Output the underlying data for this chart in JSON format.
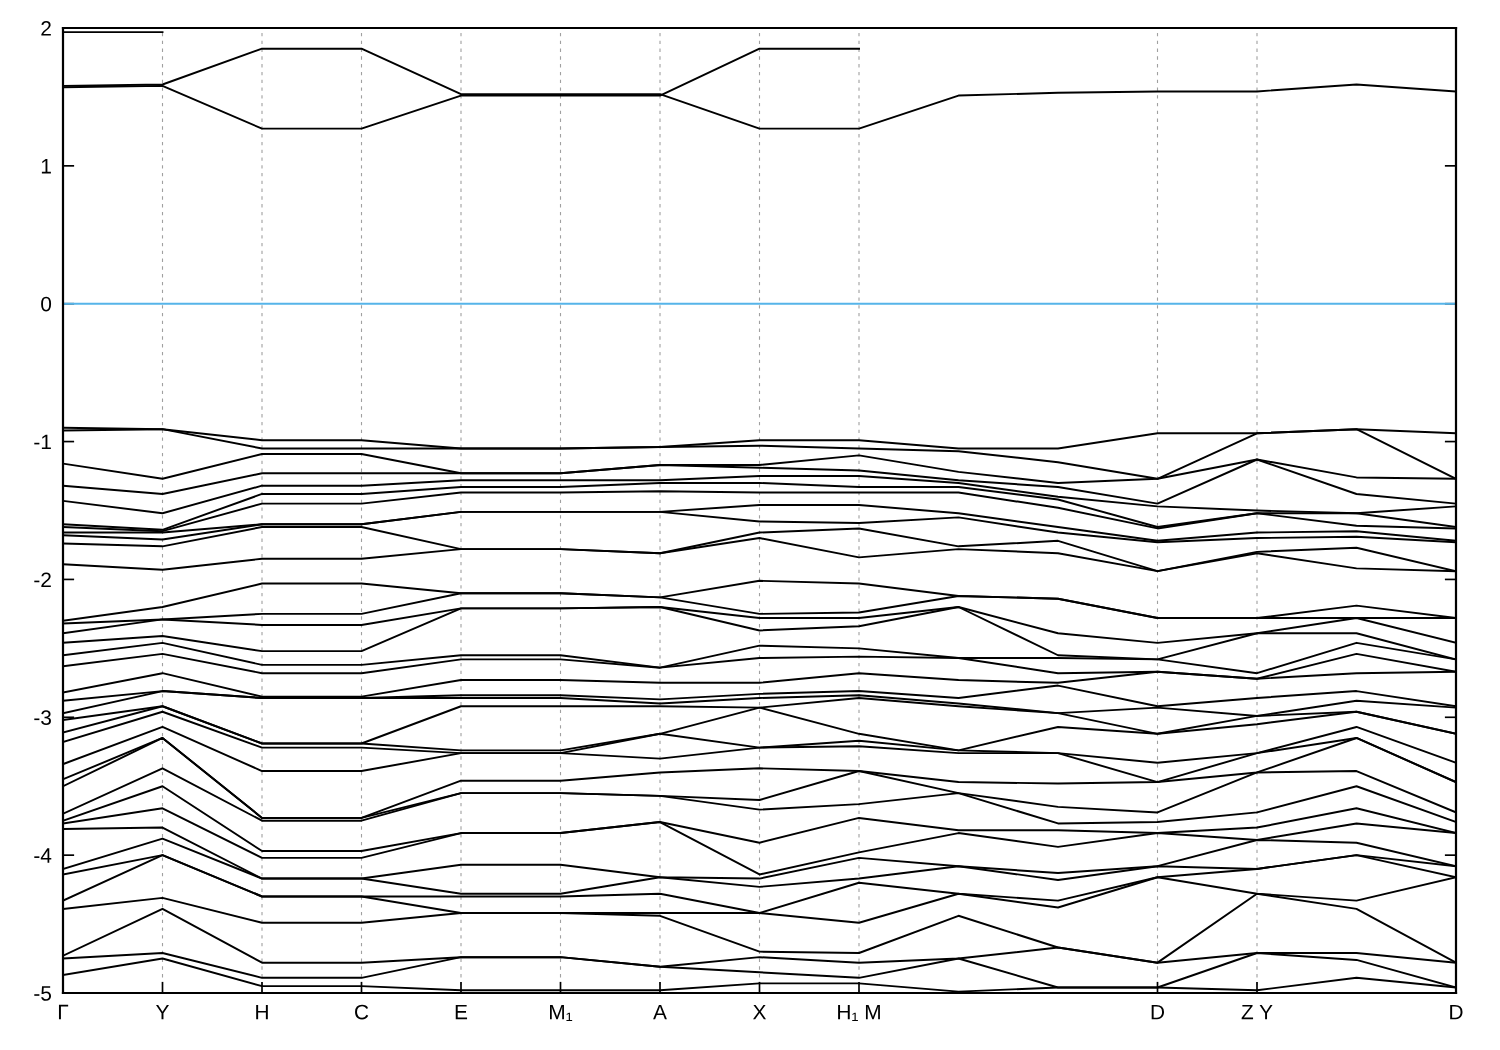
{
  "chart_data": {
    "type": "line",
    "categories": [
      "Γ",
      "Y",
      "H",
      "C",
      "E",
      "M₁",
      "A",
      "X",
      "H₁ M",
      null,
      null,
      "D",
      "Z Y",
      null,
      "D"
    ],
    "ylim": [
      -5,
      2
    ],
    "yticks": [
      -5,
      -4,
      -3,
      -2,
      -1,
      0,
      1,
      2
    ],
    "grid": "x",
    "ref_lines": [
      {
        "axis": "y",
        "value": 0,
        "color": "#56b4e9"
      }
    ],
    "series": [
      {
        "color": "#000000",
        "values": [
          1.97,
          1.97,
          null,
          null,
          null,
          null,
          null,
          null,
          null,
          null,
          null,
          null,
          null,
          null,
          null
        ]
      },
      {
        "color": "#000000",
        "values": [
          1.58,
          1.59,
          1.85,
          1.85,
          1.52,
          1.52,
          1.52,
          1.27,
          1.27,
          1.51,
          1.53,
          1.54,
          1.54,
          1.59,
          1.54
        ]
      },
      {
        "color": "#000000",
        "values": [
          1.57,
          1.58,
          1.27,
          1.27,
          1.51,
          1.51,
          1.51,
          1.85,
          1.85,
          null,
          null,
          null,
          null,
          null,
          null
        ]
      },
      {
        "color": "#000000",
        "values": [
          -0.9,
          -0.91,
          -0.99,
          -0.99,
          -1.05,
          -1.05,
          -1.04,
          -0.99,
          -0.99,
          -1.05,
          -1.05,
          -0.94,
          -0.94,
          -0.91,
          -0.94
        ]
      },
      {
        "color": "#000000",
        "values": [
          -0.92,
          -0.91,
          -1.05,
          -1.05,
          -1.05,
          -1.05,
          -1.04,
          -1.03,
          -1.05,
          -1.07,
          -1.15,
          -1.27,
          -0.94,
          -0.91,
          -1.27
        ]
      },
      {
        "color": "#000000",
        "values": [
          -1.16,
          -1.27,
          -1.09,
          -1.09,
          -1.23,
          -1.23,
          -1.17,
          -1.17,
          -1.1,
          -1.22,
          -1.3,
          -1.27,
          -1.13,
          -1.26,
          -1.27
        ]
      },
      {
        "color": "#000000",
        "values": [
          -1.32,
          -1.38,
          -1.23,
          -1.23,
          -1.23,
          -1.23,
          -1.17,
          -1.19,
          -1.21,
          -1.28,
          -1.33,
          -1.45,
          -1.13,
          -1.38,
          -1.45
        ]
      },
      {
        "color": "#000000",
        "values": [
          -1.43,
          -1.52,
          -1.32,
          -1.32,
          -1.28,
          -1.28,
          -1.28,
          -1.25,
          -1.25,
          -1.3,
          -1.4,
          -1.47,
          -1.5,
          -1.52,
          -1.47
        ]
      },
      {
        "color": "#000000",
        "values": [
          -1.6,
          -1.64,
          -1.38,
          -1.38,
          -1.33,
          -1.33,
          -1.3,
          -1.3,
          -1.33,
          -1.33,
          -1.42,
          -1.62,
          -1.52,
          -1.52,
          -1.62
        ]
      },
      {
        "color": "#000000",
        "values": [
          -1.62,
          -1.65,
          -1.45,
          -1.45,
          -1.37,
          -1.37,
          -1.36,
          -1.37,
          -1.37,
          -1.37,
          -1.48,
          -1.63,
          -1.52,
          -1.61,
          -1.63
        ]
      },
      {
        "color": "#000000",
        "values": [
          -1.66,
          -1.66,
          -1.6,
          -1.6,
          -1.51,
          -1.51,
          -1.51,
          -1.46,
          -1.46,
          -1.52,
          -1.62,
          -1.72,
          -1.66,
          -1.65,
          -1.72
        ]
      },
      {
        "color": "#000000",
        "values": [
          -1.68,
          -1.71,
          -1.6,
          -1.6,
          -1.51,
          -1.51,
          -1.51,
          -1.58,
          -1.59,
          -1.55,
          -1.66,
          -1.73,
          -1.7,
          -1.69,
          -1.73
        ]
      },
      {
        "color": "#000000",
        "values": [
          -1.74,
          -1.76,
          -1.62,
          -1.62,
          -1.78,
          -1.78,
          -1.81,
          -1.66,
          -1.63,
          -1.76,
          -1.72,
          -1.94,
          -1.8,
          -1.77,
          -1.94
        ]
      },
      {
        "color": "#000000",
        "values": [
          -1.89,
          -1.93,
          -1.85,
          -1.85,
          -1.78,
          -1.78,
          -1.81,
          -1.7,
          -1.84,
          -1.78,
          -1.81,
          -1.94,
          -1.81,
          -1.92,
          -1.94
        ]
      },
      {
        "color": "#000000",
        "values": [
          -2.3,
          -2.2,
          -2.03,
          -2.03,
          -2.1,
          -2.1,
          -2.13,
          -2.01,
          -2.03,
          -2.12,
          -2.14,
          -2.28,
          -2.28,
          -2.19,
          -2.28
        ]
      },
      {
        "color": "#000000",
        "values": [
          -2.32,
          -2.29,
          -2.25,
          -2.25,
          -2.1,
          -2.1,
          -2.13,
          -2.25,
          -2.24,
          -2.12,
          -2.14,
          -2.28,
          -2.28,
          -2.28,
          -2.28
        ]
      },
      {
        "color": "#000000",
        "values": [
          -2.39,
          -2.29,
          -2.33,
          -2.33,
          -2.21,
          -2.21,
          -2.2,
          -2.28,
          -2.28,
          -2.2,
          -2.39,
          -2.46,
          -2.39,
          -2.28,
          -2.46
        ]
      },
      {
        "color": "#000000",
        "values": [
          -2.46,
          -2.41,
          -2.52,
          -2.52,
          -2.21,
          -2.21,
          -2.2,
          -2.37,
          -2.34,
          -2.2,
          -2.55,
          -2.58,
          -2.39,
          -2.39,
          -2.58
        ]
      },
      {
        "color": "#000000",
        "values": [
          -2.55,
          -2.46,
          -2.62,
          -2.62,
          -2.55,
          -2.55,
          -2.64,
          -2.48,
          -2.5,
          -2.57,
          -2.57,
          -2.58,
          -2.68,
          -2.46,
          -2.58
        ]
      },
      {
        "color": "#000000",
        "values": [
          -2.63,
          -2.54,
          -2.68,
          -2.68,
          -2.58,
          -2.58,
          -2.64,
          -2.57,
          -2.56,
          -2.57,
          -2.68,
          -2.67,
          -2.72,
          -2.54,
          -2.67
        ]
      },
      {
        "color": "#000000",
        "values": [
          -2.82,
          -2.68,
          -2.85,
          -2.85,
          -2.73,
          -2.73,
          -2.75,
          -2.75,
          -2.68,
          -2.73,
          -2.75,
          -2.67,
          -2.72,
          -2.68,
          -2.67
        ]
      },
      {
        "color": "#000000",
        "values": [
          -2.88,
          -2.81,
          -2.86,
          -2.86,
          -2.84,
          -2.84,
          -2.87,
          -2.83,
          -2.81,
          -2.86,
          -2.77,
          -2.92,
          -2.86,
          -2.81,
          -2.92
        ]
      },
      {
        "color": "#000000",
        "values": [
          -2.97,
          -2.81,
          -2.86,
          -2.86,
          -2.86,
          -2.86,
          -2.9,
          -2.86,
          -2.84,
          -2.9,
          -2.97,
          -2.93,
          -2.99,
          -2.88,
          -2.93
        ]
      },
      {
        "color": "#000000",
        "values": [
          -3.02,
          -2.92,
          -3.19,
          -3.19,
          -2.92,
          -2.92,
          -2.92,
          -2.93,
          -2.86,
          -2.92,
          -2.97,
          -3.12,
          -2.99,
          -2.96,
          -3.12
        ]
      },
      {
        "color": "#000000",
        "values": [
          -3.11,
          -2.92,
          -3.19,
          -3.19,
          -3.24,
          -3.24,
          -3.12,
          -2.93,
          -3.12,
          -3.24,
          -3.07,
          -3.12,
          -3.05,
          -2.96,
          -3.12
        ]
      },
      {
        "color": "#000000",
        "values": [
          -3.18,
          -2.96,
          -3.22,
          -3.22,
          -3.26,
          -3.26,
          -3.12,
          -3.22,
          -3.17,
          -3.24,
          -3.26,
          -3.33,
          -3.26,
          -3.07,
          -3.33
        ]
      },
      {
        "color": "#000000",
        "values": [
          -3.34,
          -3.07,
          -3.39,
          -3.39,
          -3.26,
          -3.26,
          -3.3,
          -3.22,
          -3.21,
          -3.26,
          -3.26,
          -3.47,
          -3.26,
          -3.15,
          -3.47
        ]
      },
      {
        "color": "#000000",
        "values": [
          -3.45,
          -3.15,
          -3.73,
          -3.73,
          -3.46,
          -3.46,
          -3.4,
          -3.37,
          -3.39,
          -3.47,
          -3.48,
          -3.47,
          -3.4,
          -3.15,
          -3.47
        ]
      },
      {
        "color": "#000000",
        "values": [
          -3.5,
          -3.15,
          -3.73,
          -3.73,
          -3.55,
          -3.55,
          -3.57,
          -3.6,
          -3.39,
          -3.55,
          -3.65,
          -3.69,
          -3.4,
          -3.39,
          -3.69
        ]
      },
      {
        "color": "#000000",
        "values": [
          -3.7,
          -3.37,
          -3.75,
          -3.75,
          -3.55,
          -3.55,
          -3.57,
          -3.67,
          -3.63,
          -3.55,
          -3.77,
          -3.76,
          -3.69,
          -3.5,
          -3.76
        ]
      },
      {
        "color": "#000000",
        "values": [
          -3.75,
          -3.5,
          -3.97,
          -3.97,
          -3.84,
          -3.84,
          -3.76,
          -3.91,
          -3.73,
          -3.82,
          -3.82,
          -3.84,
          -3.8,
          -3.66,
          -3.84
        ]
      },
      {
        "color": "#000000",
        "values": [
          -3.77,
          -3.66,
          -4.02,
          -4.02,
          -3.84,
          -3.84,
          -3.76,
          -4.14,
          -3.98,
          -3.84,
          -3.94,
          -3.84,
          -3.89,
          -3.77,
          -3.84
        ]
      },
      {
        "color": "#000000",
        "values": [
          -3.81,
          -3.8,
          -4.17,
          -4.17,
          -4.07,
          -4.07,
          -4.16,
          -4.17,
          -4.02,
          -4.08,
          -4.13,
          -4.08,
          -3.89,
          -3.91,
          -4.08
        ]
      },
      {
        "color": "#000000",
        "values": [
          -4.1,
          -3.88,
          -4.17,
          -4.17,
          -4.28,
          -4.28,
          -4.16,
          -4.23,
          -4.17,
          -4.08,
          -4.18,
          -4.08,
          -4.1,
          -4.0,
          -4.08
        ]
      },
      {
        "color": "#000000",
        "values": [
          -4.14,
          -4.0,
          -4.3,
          -4.3,
          -4.3,
          -4.3,
          -4.28,
          -4.42,
          -4.2,
          -4.28,
          -4.33,
          -4.16,
          -4.1,
          -4.0,
          -4.16
        ]
      },
      {
        "color": "#000000",
        "values": [
          -4.33,
          -4.0,
          -4.3,
          -4.3,
          -4.42,
          -4.42,
          -4.42,
          -4.42,
          -4.49,
          -4.28,
          -4.38,
          -4.16,
          -4.28,
          -4.33,
          -4.16
        ]
      },
      {
        "color": "#000000",
        "values": [
          -4.39,
          -4.31,
          -4.49,
          -4.49,
          -4.42,
          -4.42,
          -4.44,
          -4.7,
          -4.71,
          -4.44,
          -4.67,
          -4.78,
          -4.28,
          -4.39,
          -4.78
        ]
      },
      {
        "color": "#000000",
        "values": [
          -4.73,
          -4.39,
          -4.78,
          -4.78,
          -4.74,
          -4.74,
          -4.81,
          -4.74,
          -4.78,
          -4.75,
          -4.67,
          -4.78,
          -4.71,
          -4.71,
          -4.78
        ]
      },
      {
        "color": "#000000",
        "values": [
          -4.75,
          -4.71,
          -4.89,
          -4.89,
          -4.74,
          -4.74,
          -4.81,
          -4.85,
          -4.89,
          -4.75,
          -4.96,
          -4.96,
          -4.71,
          -4.76,
          -4.96
        ]
      },
      {
        "color": "#000000",
        "values": [
          -4.87,
          -4.75,
          -4.95,
          -4.95,
          -4.98,
          -4.98,
          -4.98,
          -4.93,
          -4.93,
          -4.99,
          -4.96,
          -4.96,
          -4.98,
          -4.89,
          -4.96
        ]
      }
    ]
  }
}
